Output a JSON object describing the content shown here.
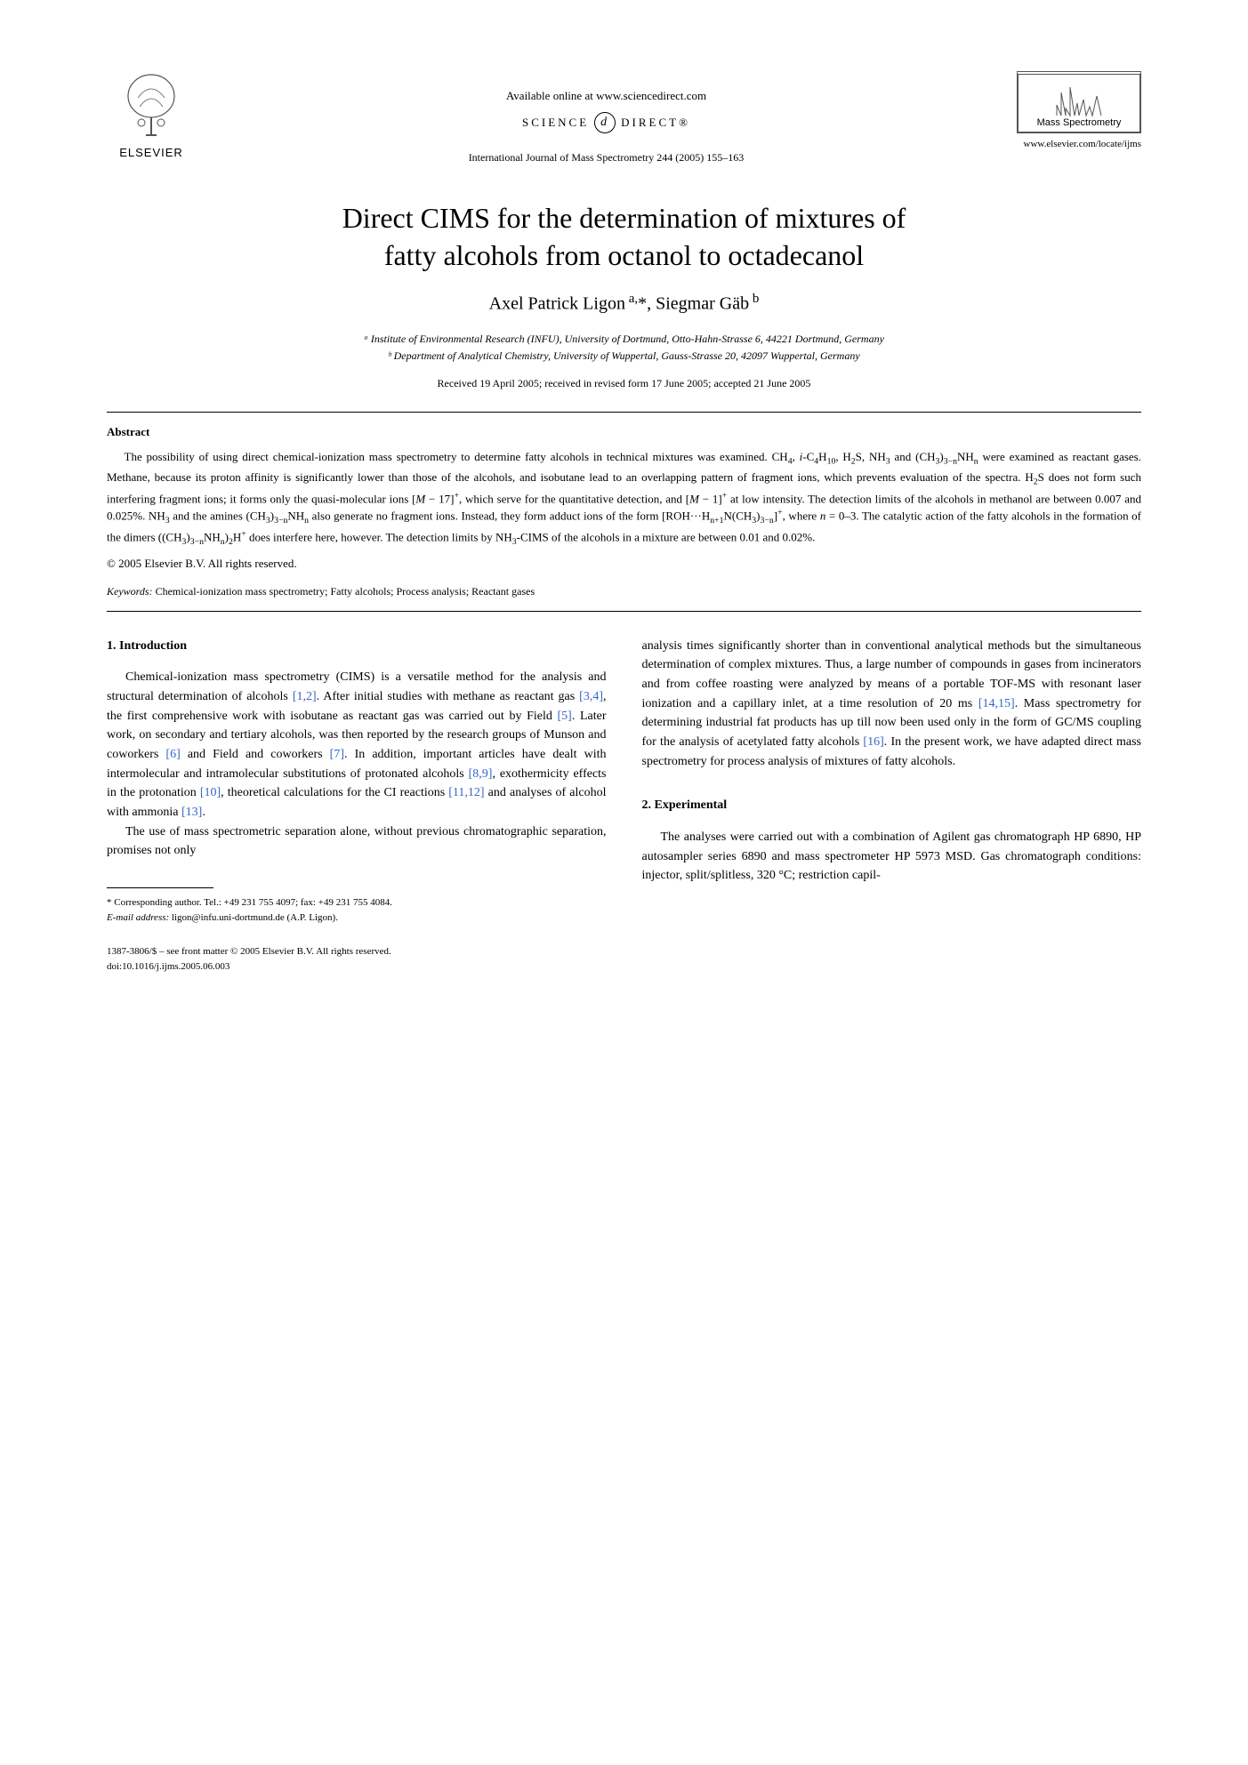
{
  "header": {
    "publisher_name": "ELSEVIER",
    "available_text": "Available online at www.sciencedirect.com",
    "science_direct_left": "SCIENCE",
    "science_direct_right": "DIRECT®",
    "sd_icon_text": "d",
    "journal_reference": "International Journal of Mass Spectrometry 244 (2005) 155–163",
    "journal_logo_text": "Mass Spectrometry",
    "journal_url": "www.elsevier.com/locate/ijms"
  },
  "title_line1": "Direct CIMS for the determination of mixtures of",
  "title_line2": "fatty alcohols from octanol to octadecanol",
  "authors_html": "Axel Patrick Ligon<sup> a,</sup>*, Siegmar Gäb<sup> b</sup>",
  "affiliation_a": "ᵃ Institute of Environmental Research (INFU), University of Dortmund, Otto-Hahn-Strasse 6, 44221 Dortmund, Germany",
  "affiliation_b": "ᵇ Department of Analytical Chemistry, University of Wuppertal, Gauss-Strasse 20, 42097 Wuppertal, Germany",
  "dates": "Received 19 April 2005; received in revised form 17 June 2005; accepted 21 June 2005",
  "abstract": {
    "heading": "Abstract",
    "body_html": "The possibility of using direct chemical-ionization mass spectrometry to determine fatty alcohols in technical mixtures was examined. CH<sub>4</sub>, <i>i</i>-C<sub>4</sub>H<sub>10</sub>, H<sub>2</sub>S, NH<sub>3</sub> and (CH<sub>3</sub>)<sub>3−n</sub>NH<sub>n</sub> were examined as reactant gases. Methane, because its proton affinity is significantly lower than those of the alcohols, and isobutane lead to an overlapping pattern of fragment ions, which prevents evaluation of the spectra. H<sub>2</sub>S does not form such interfering fragment ions; it forms only the quasi-molecular ions [<i>M</i> − 17]<sup>+</sup>, which serve for the quantitative detection, and [<i>M</i> − 1]<sup>+</sup> at low intensity. The detection limits of the alcohols in methanol are between 0.007 and 0.025%. NH<sub>3</sub> and the amines (CH<sub>3</sub>)<sub>3−n</sub>NH<sub>n</sub> also generate no fragment ions. Instead, they form adduct ions of the form [ROH···H<sub>n+1</sub>N(CH<sub>3</sub>)<sub>3−n</sub>]<sup>+</sup>, where <i>n</i> = 0–3. The catalytic action of the fatty alcohols in the formation of the dimers ((CH<sub>3</sub>)<sub>3−n</sub>NH<sub>n</sub>)<sub>2</sub>H<sup>+</sup> does interfere here, however. The detection limits by NH<sub>3</sub>-CIMS of the alcohols in a mixture are between 0.01 and 0.02%.",
    "copyright": "© 2005 Elsevier B.V. All rights reserved."
  },
  "keywords": {
    "label": "Keywords:",
    "text": " Chemical-ionization mass spectrometry; Fatty alcohols; Process analysis; Reactant gases"
  },
  "sections": {
    "intro_heading": "1. Introduction",
    "intro_p1_html": "Chemical-ionization mass spectrometry (CIMS) is a versatile method for the analysis and structural determination of alcohols <span class=\"ref-link\">[1,2]</span>. After initial studies with methane as reactant gas <span class=\"ref-link\">[3,4]</span>, the first comprehensive work with isobutane as reactant gas was carried out by Field <span class=\"ref-link\">[5]</span>. Later work, on secondary and tertiary alcohols, was then reported by the research groups of Munson and coworkers <span class=\"ref-link\">[6]</span> and Field and coworkers <span class=\"ref-link\">[7]</span>. In addition, important articles have dealt with intermolecular and intramolecular substitutions of protonated alcohols <span class=\"ref-link\">[8,9]</span>, exothermicity effects in the protonation <span class=\"ref-link\">[10]</span>, theoretical calculations for the CI reactions <span class=\"ref-link\">[11,12]</span> and analyses of alcohol with ammonia <span class=\"ref-link\">[13]</span>.",
    "intro_p2_html": "The use of mass spectrometric separation alone, without previous chromatographic separation, promises not only",
    "intro_p3_html": "analysis times significantly shorter than in conventional analytical methods but the simultaneous determination of complex mixtures. Thus, a large number of compounds in gases from incinerators and from coffee roasting were analyzed by means of a portable TOF-MS with resonant laser ionization and a capillary inlet, at a time resolution of 20 ms <span class=\"ref-link\">[14,15]</span>. Mass spectrometry for determining industrial fat products has up till now been used only in the form of GC/MS coupling for the analysis of acetylated fatty alcohols <span class=\"ref-link\">[16]</span>. In the present work, we have adapted direct mass spectrometry for process analysis of mixtures of fatty alcohols.",
    "exp_heading": "2. Experimental",
    "exp_p1_html": "The analyses were carried out with a combination of Agilent gas chromatograph HP 6890, HP autosampler series 6890 and mass spectrometer HP 5973 MSD. Gas chromatograph conditions: injector, split/splitless, 320 °C; restriction capil-"
  },
  "footnote": {
    "corr_html": "* Corresponding author. Tel.: +49 231 755 4097; fax: +49 231 755 4084.",
    "email_label": "E-mail address:",
    "email_value": " ligon@infu.uni-dortmund.de (A.P. Ligon)."
  },
  "bottom": {
    "line1": "1387-3806/$ – see front matter © 2005 Elsevier B.V. All rights reserved.",
    "line2": "doi:10.1016/j.ijms.2005.06.003"
  },
  "colors": {
    "text": "#000000",
    "link": "#3366cc",
    "background": "#ffffff",
    "logo_gray": "#555555"
  }
}
